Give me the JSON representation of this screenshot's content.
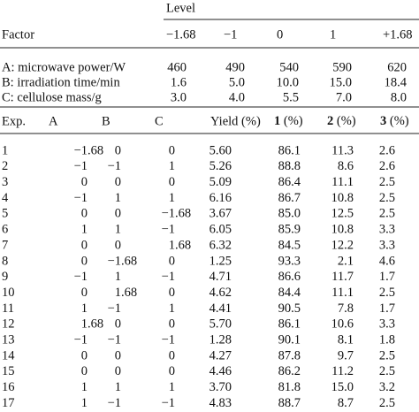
{
  "header": {
    "level": "Level",
    "factor": "Factor",
    "levels": [
      "−1.68",
      "−1",
      "0",
      "1",
      "+1.68"
    ]
  },
  "factors": [
    {
      "label": "A: microwave power/W",
      "values": [
        "460",
        "490",
        "540",
        "590",
        "620"
      ]
    },
    {
      "label": "B: irradiation time/min",
      "values": [
        "1.6",
        "5.0",
        "10.0",
        "15.0",
        "18.4"
      ]
    },
    {
      "label": "C: cellulose mass/g",
      "values": [
        "3.0",
        "4.0",
        "5.5",
        "7.0",
        "8.0"
      ]
    }
  ],
  "table": {
    "columns": [
      "Exp.",
      "A",
      "B",
      "C",
      "Yield (%)",
      {
        "compound": "1",
        "unit": "(%)"
      },
      {
        "compound": "2",
        "unit": "(%)"
      },
      {
        "compound": "3",
        "unit": "(%)"
      }
    ],
    "rows": [
      [
        "1",
        "−1.68",
        "0",
        "0",
        "5.60",
        "86.1",
        "11.3",
        "2.6"
      ],
      [
        "2",
        "−1",
        "−1",
        "1",
        "5.26",
        "88.8",
        "8.6",
        "2.6"
      ],
      [
        "3",
        "0",
        "0",
        "0",
        "5.09",
        "86.4",
        "11.1",
        "2.5"
      ],
      [
        "4",
        "−1",
        "1",
        "1",
        "6.16",
        "86.7",
        "10.8",
        "2.5"
      ],
      [
        "5",
        "0",
        "0",
        "−1.68",
        "3.67",
        "85.0",
        "12.5",
        "2.5"
      ],
      [
        "6",
        "1",
        "1",
        "−1",
        "6.05",
        "85.9",
        "10.8",
        "3.3"
      ],
      [
        "7",
        "0",
        "0",
        "1.68",
        "6.32",
        "84.5",
        "12.2",
        "3.3"
      ],
      [
        "8",
        "0",
        "−1.68",
        "0",
        "1.25",
        "93.3",
        "2.1",
        "4.6"
      ],
      [
        "9",
        "−1",
        "1",
        "−1",
        "4.71",
        "86.6",
        "11.7",
        "1.7"
      ],
      [
        "10",
        "0",
        "1.68",
        "0",
        "4.62",
        "84.4",
        "11.1",
        "2.5"
      ],
      [
        "11",
        "1",
        "−1",
        "1",
        "4.41",
        "90.5",
        "7.8",
        "1.7"
      ],
      [
        "12",
        "1.68",
        "0",
        "0",
        "5.70",
        "86.1",
        "10.6",
        "3.3"
      ],
      [
        "13",
        "−1",
        "−1",
        "−1",
        "1.28",
        "90.1",
        "8.1",
        "1.8"
      ],
      [
        "14",
        "0",
        "0",
        "0",
        "4.27",
        "87.8",
        "9.7",
        "2.5"
      ],
      [
        "15",
        "0",
        "0",
        "0",
        "4.46",
        "86.2",
        "11.2",
        "2.5"
      ],
      [
        "16",
        "1",
        "1",
        "1",
        "3.70",
        "81.8",
        "15.0",
        "3.2"
      ],
      [
        "17",
        "1",
        "−1",
        "−1",
        "4.83",
        "88.7",
        "8.7",
        "2.5"
      ]
    ]
  }
}
